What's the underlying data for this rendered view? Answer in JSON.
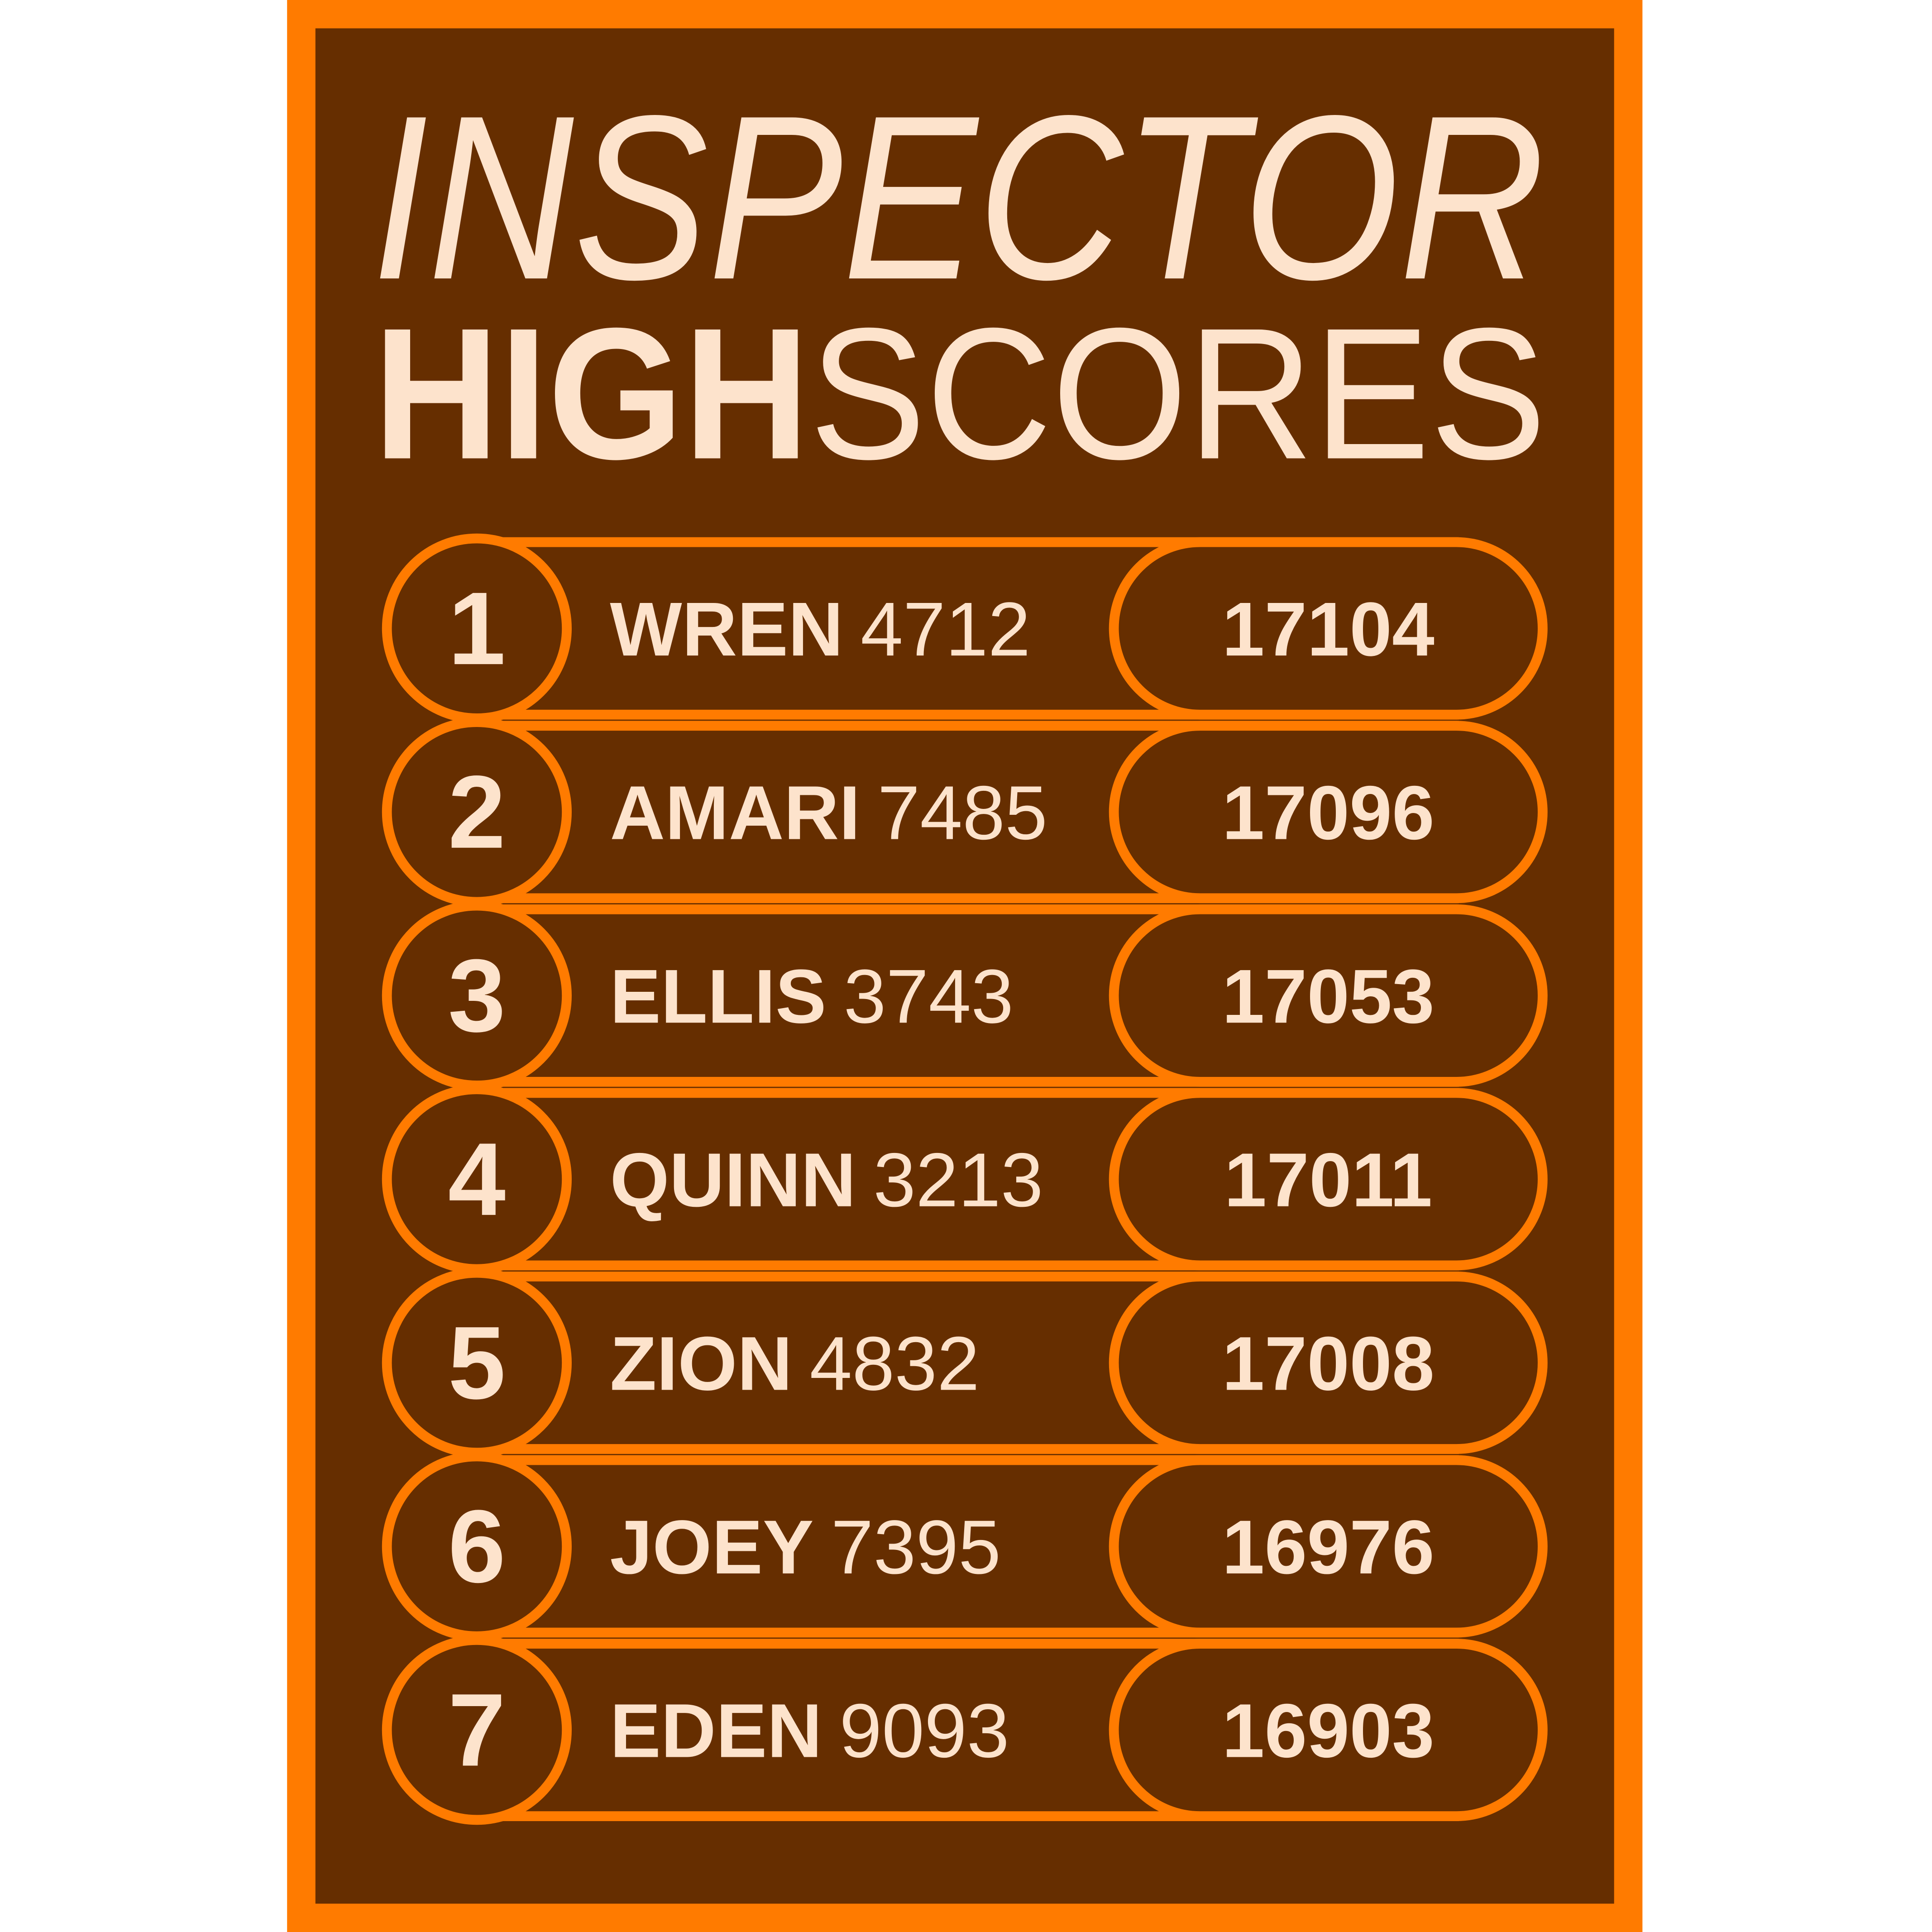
{
  "title": {
    "line1": "INSPECTOR",
    "line2_bold": "HIGH",
    "line2_light": "SCORES"
  },
  "rows": [
    {
      "rank": 1,
      "name": "WREN",
      "id": 4712,
      "score": 17104
    },
    {
      "rank": 2,
      "name": "AMARI",
      "id": 7485,
      "score": 17096
    },
    {
      "rank": 3,
      "name": "ELLIS",
      "id": 3743,
      "score": 17053
    },
    {
      "rank": 4,
      "name": "QUINN",
      "id": 3213,
      "score": 17011
    },
    {
      "rank": 5,
      "name": "ZION",
      "id": 4832,
      "score": 17008
    },
    {
      "rank": 6,
      "name": "JOEY",
      "id": 7395,
      "score": 16976
    },
    {
      "rank": 7,
      "name": "EDEN",
      "id": 9093,
      "score": 16903
    }
  ]
}
